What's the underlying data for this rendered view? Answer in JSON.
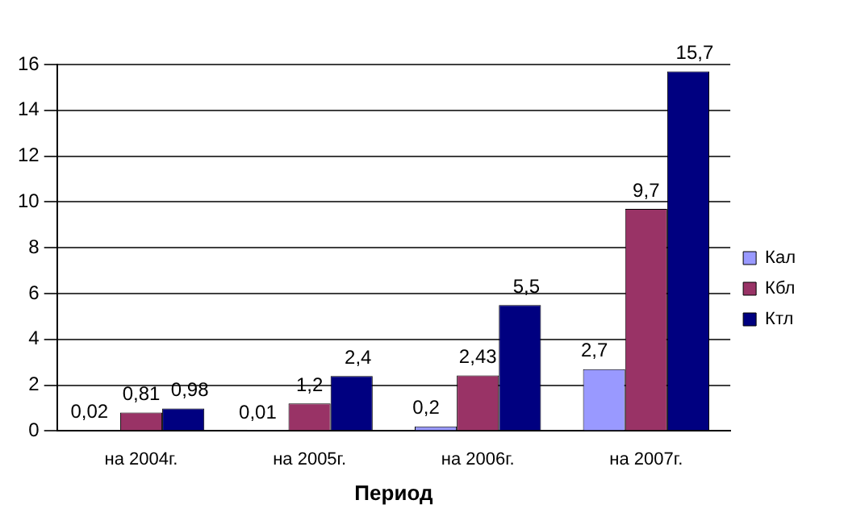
{
  "chart_data": {
    "type": "bar",
    "xlabel": "Период",
    "categories": [
      "на 2004г.",
      "на 2005г.",
      "на 2006г.",
      "на 2007г."
    ],
    "series": [
      {
        "name": "Кал",
        "color": "#9999ff",
        "values": [
          0.02,
          0.01,
          0.2,
          2.7
        ],
        "value_labels": [
          "0,02",
          "0,01",
          "0,2",
          "2,7"
        ]
      },
      {
        "name": "Кбл",
        "color": "#993366",
        "values": [
          0.81,
          1.2,
          2.43,
          9.7
        ],
        "value_labels": [
          "0,81",
          "1,2",
          "2,43",
          "9,7"
        ]
      },
      {
        "name": "Ктл",
        "color": "#000080",
        "values": [
          0.98,
          2.4,
          5.5,
          15.7
        ],
        "value_labels": [
          "0,98",
          "2,4",
          "5,5",
          "15,7"
        ]
      }
    ],
    "ylim": [
      0,
      16
    ],
    "yticks": [
      0,
      2,
      4,
      6,
      8,
      10,
      12,
      14,
      16
    ],
    "grid": "y",
    "legend": "right"
  }
}
